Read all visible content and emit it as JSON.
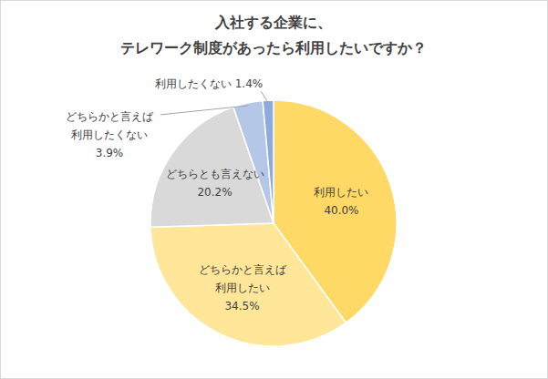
{
  "chart_data": {
    "type": "pie",
    "title": "入社する企業に、\nテレワーク制度があったら利用したいですか？",
    "categories": [
      "利用したい",
      "どちらかと言えば\n利用したい",
      "どちらとも言えない",
      "どちらかと言えば\n利用したくない",
      "利用したくない"
    ],
    "values": [
      40.0,
      34.5,
      20.2,
      3.9,
      1.4
    ],
    "value_labels": [
      "40.0%",
      "34.5%",
      "20.2%",
      "3.9%",
      "1.4%"
    ],
    "colors": [
      "#ffd966",
      "#ffe699",
      "#d9d9d9",
      "#b4c7e7",
      "#8faadc"
    ],
    "data_labels": true
  }
}
